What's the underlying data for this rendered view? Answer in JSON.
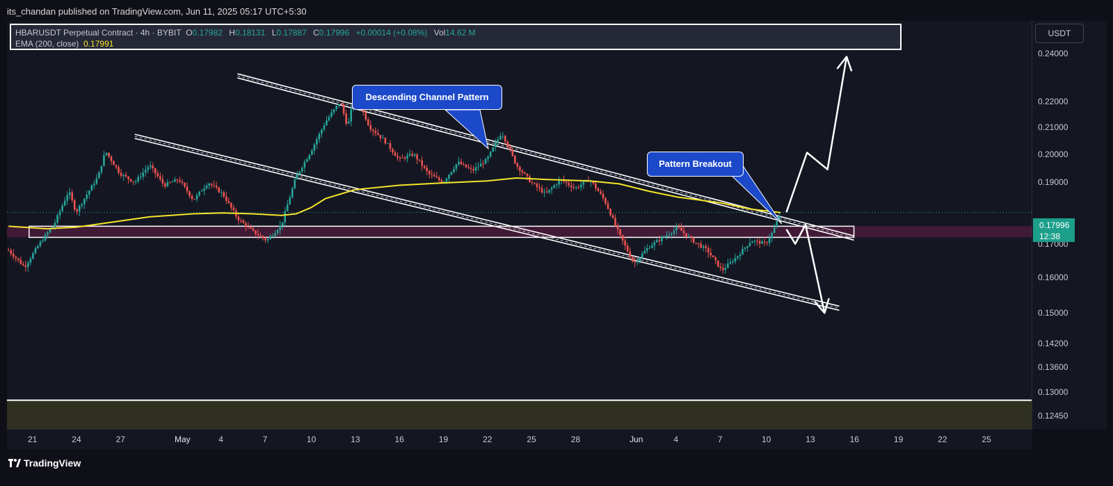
{
  "publisher": "its_chandan published on TradingView.com, Jun 11, 2025 05:17 UTC+5:30",
  "legend": {
    "title": "HBARUSDT Perpetual Contract · 4h · BYBIT",
    "open_label": "O",
    "open": "0.17982",
    "high_label": "H",
    "high": "0.18131",
    "low_label": "L",
    "low": "0.17887",
    "close_label": "C",
    "close": "0.17996",
    "change": "+0.00014 (+0.08%)",
    "vol_label": "Vol",
    "vol": "14.62 M",
    "ema_label": "EMA (200, close)",
    "ema_value": "0.17991"
  },
  "currency_button": "USDT",
  "last_price": {
    "value": "0.17996",
    "countdown": "12:38"
  },
  "footer": {
    "brand": "TradingView"
  },
  "colors": {
    "up": "#26a69a",
    "down": "#ef5350",
    "ema": "#f5e52a",
    "callout": "#1c49c9",
    "background": "#141722"
  },
  "chart_data": {
    "type": "candlestick",
    "symbol": "HBARUSDT",
    "timeframe": "4h",
    "y_scale": "log",
    "ylim": [
      0.1216,
      0.2545
    ],
    "y_ticks": [
      "0.24000",
      "0.22000",
      "0.21000",
      "0.20000",
      "0.19000",
      "0.17000",
      "0.16000",
      "0.15000",
      "0.14200",
      "0.13600",
      "0.13000",
      "0.12450"
    ],
    "x_ticks": [
      {
        "label": "21",
        "day": 0
      },
      {
        "label": "24",
        "day": 3
      },
      {
        "label": "27",
        "day": 6
      },
      {
        "label": "May",
        "day": 10
      },
      {
        "label": "4",
        "day": 13
      },
      {
        "label": "7",
        "day": 16
      },
      {
        "label": "10",
        "day": 19
      },
      {
        "label": "13",
        "day": 22
      },
      {
        "label": "16",
        "day": 25
      },
      {
        "label": "19",
        "day": 28
      },
      {
        "label": "22",
        "day": 31
      },
      {
        "label": "25",
        "day": 34
      },
      {
        "label": "28",
        "day": 37
      },
      {
        "label": "Jun",
        "day": 41
      },
      {
        "label": "4",
        "day": 44
      },
      {
        "label": "7",
        "day": 47
      },
      {
        "label": "10",
        "day": 50
      },
      {
        "label": "13",
        "day": 53
      },
      {
        "label": "16",
        "day": 56
      },
      {
        "label": "19",
        "day": 59
      },
      {
        "label": "22",
        "day": 62
      },
      {
        "label": "25",
        "day": 65
      }
    ],
    "price_path": [
      [
        -1.6,
        0.168
      ],
      [
        -0.5,
        0.163
      ],
      [
        0.5,
        0.17
      ],
      [
        1.5,
        0.176
      ],
      [
        2.5,
        0.187
      ],
      [
        3.0,
        0.18
      ],
      [
        3.5,
        0.184
      ],
      [
        4.5,
        0.192
      ],
      [
        5.0,
        0.201
      ],
      [
        6.0,
        0.193
      ],
      [
        7.0,
        0.19
      ],
      [
        8.0,
        0.196
      ],
      [
        9.0,
        0.189
      ],
      [
        10.0,
        0.191
      ],
      [
        11.0,
        0.184
      ],
      [
        12.0,
        0.19
      ],
      [
        13.0,
        0.186
      ],
      [
        14.0,
        0.178
      ],
      [
        15.0,
        0.174
      ],
      [
        16.0,
        0.171
      ],
      [
        17.0,
        0.176
      ],
      [
        18.0,
        0.192
      ],
      [
        19.0,
        0.201
      ],
      [
        20.0,
        0.212
      ],
      [
        21.0,
        0.22
      ],
      [
        21.5,
        0.21
      ],
      [
        22.0,
        0.223
      ],
      [
        23.0,
        0.21
      ],
      [
        24.0,
        0.205
      ],
      [
        25.0,
        0.198
      ],
      [
        26.0,
        0.2
      ],
      [
        27.0,
        0.193
      ],
      [
        28.0,
        0.19
      ],
      [
        29.0,
        0.197
      ],
      [
        30.0,
        0.194
      ],
      [
        31.0,
        0.198
      ],
      [
        32.0,
        0.208
      ],
      [
        33.0,
        0.196
      ],
      [
        34.0,
        0.19
      ],
      [
        35.0,
        0.186
      ],
      [
        36.0,
        0.191
      ],
      [
        37.0,
        0.188
      ],
      [
        38.0,
        0.191
      ],
      [
        39.0,
        0.184
      ],
      [
        40.0,
        0.173
      ],
      [
        41.0,
        0.164
      ],
      [
        42.0,
        0.169
      ],
      [
        43.0,
        0.172
      ],
      [
        44.0,
        0.175
      ],
      [
        45.0,
        0.171
      ],
      [
        46.0,
        0.168
      ],
      [
        47.0,
        0.162
      ],
      [
        48.0,
        0.166
      ],
      [
        49.0,
        0.171
      ],
      [
        50.0,
        0.17
      ],
      [
        50.5,
        0.174
      ],
      [
        51.0,
        0.18
      ]
    ],
    "ema_200": [
      [
        -1.6,
        0.1755
      ],
      [
        1.0,
        0.1747
      ],
      [
        3.0,
        0.1752
      ],
      [
        5.0,
        0.1765
      ],
      [
        8.0,
        0.1785
      ],
      [
        11.0,
        0.1795
      ],
      [
        13.0,
        0.1798
      ],
      [
        15.0,
        0.1795
      ],
      [
        17.0,
        0.179
      ],
      [
        18.0,
        0.1795
      ],
      [
        19.0,
        0.1815
      ],
      [
        20.0,
        0.1845
      ],
      [
        22.0,
        0.1875
      ],
      [
        25.0,
        0.189
      ],
      [
        28.0,
        0.1898
      ],
      [
        31.0,
        0.1905
      ],
      [
        33.0,
        0.1915
      ],
      [
        35.0,
        0.191
      ],
      [
        38.0,
        0.1905
      ],
      [
        40.0,
        0.1895
      ],
      [
        42.0,
        0.187
      ],
      [
        44.0,
        0.185
      ],
      [
        47.0,
        0.183
      ],
      [
        49.0,
        0.181
      ],
      [
        51.0,
        0.1799
      ]
    ],
    "annotations": [
      {
        "type": "callout",
        "text": "Descending Channel Pattern"
      },
      {
        "type": "callout",
        "text": "Pattern Breakout"
      }
    ],
    "channel_upper": [
      [
        14.0,
        0.2304
      ],
      [
        56.0,
        0.1718
      ]
    ],
    "channel_lower": [
      [
        7.0,
        0.2065
      ],
      [
        55.0,
        0.1513
      ]
    ],
    "support_zone": [
      0.172,
      0.1755
    ],
    "lower_level": 0.1281,
    "bull_arrow_path": [
      [
        51.4,
        0.18
      ],
      [
        52.8,
        0.2005
      ],
      [
        54.2,
        0.1945
      ],
      [
        55.5,
        0.2385
      ]
    ],
    "bear_arrow_path": [
      [
        51.4,
        0.1745
      ],
      [
        52.0,
        0.17
      ],
      [
        52.7,
        0.176
      ],
      [
        54.0,
        0.15
      ]
    ]
  }
}
